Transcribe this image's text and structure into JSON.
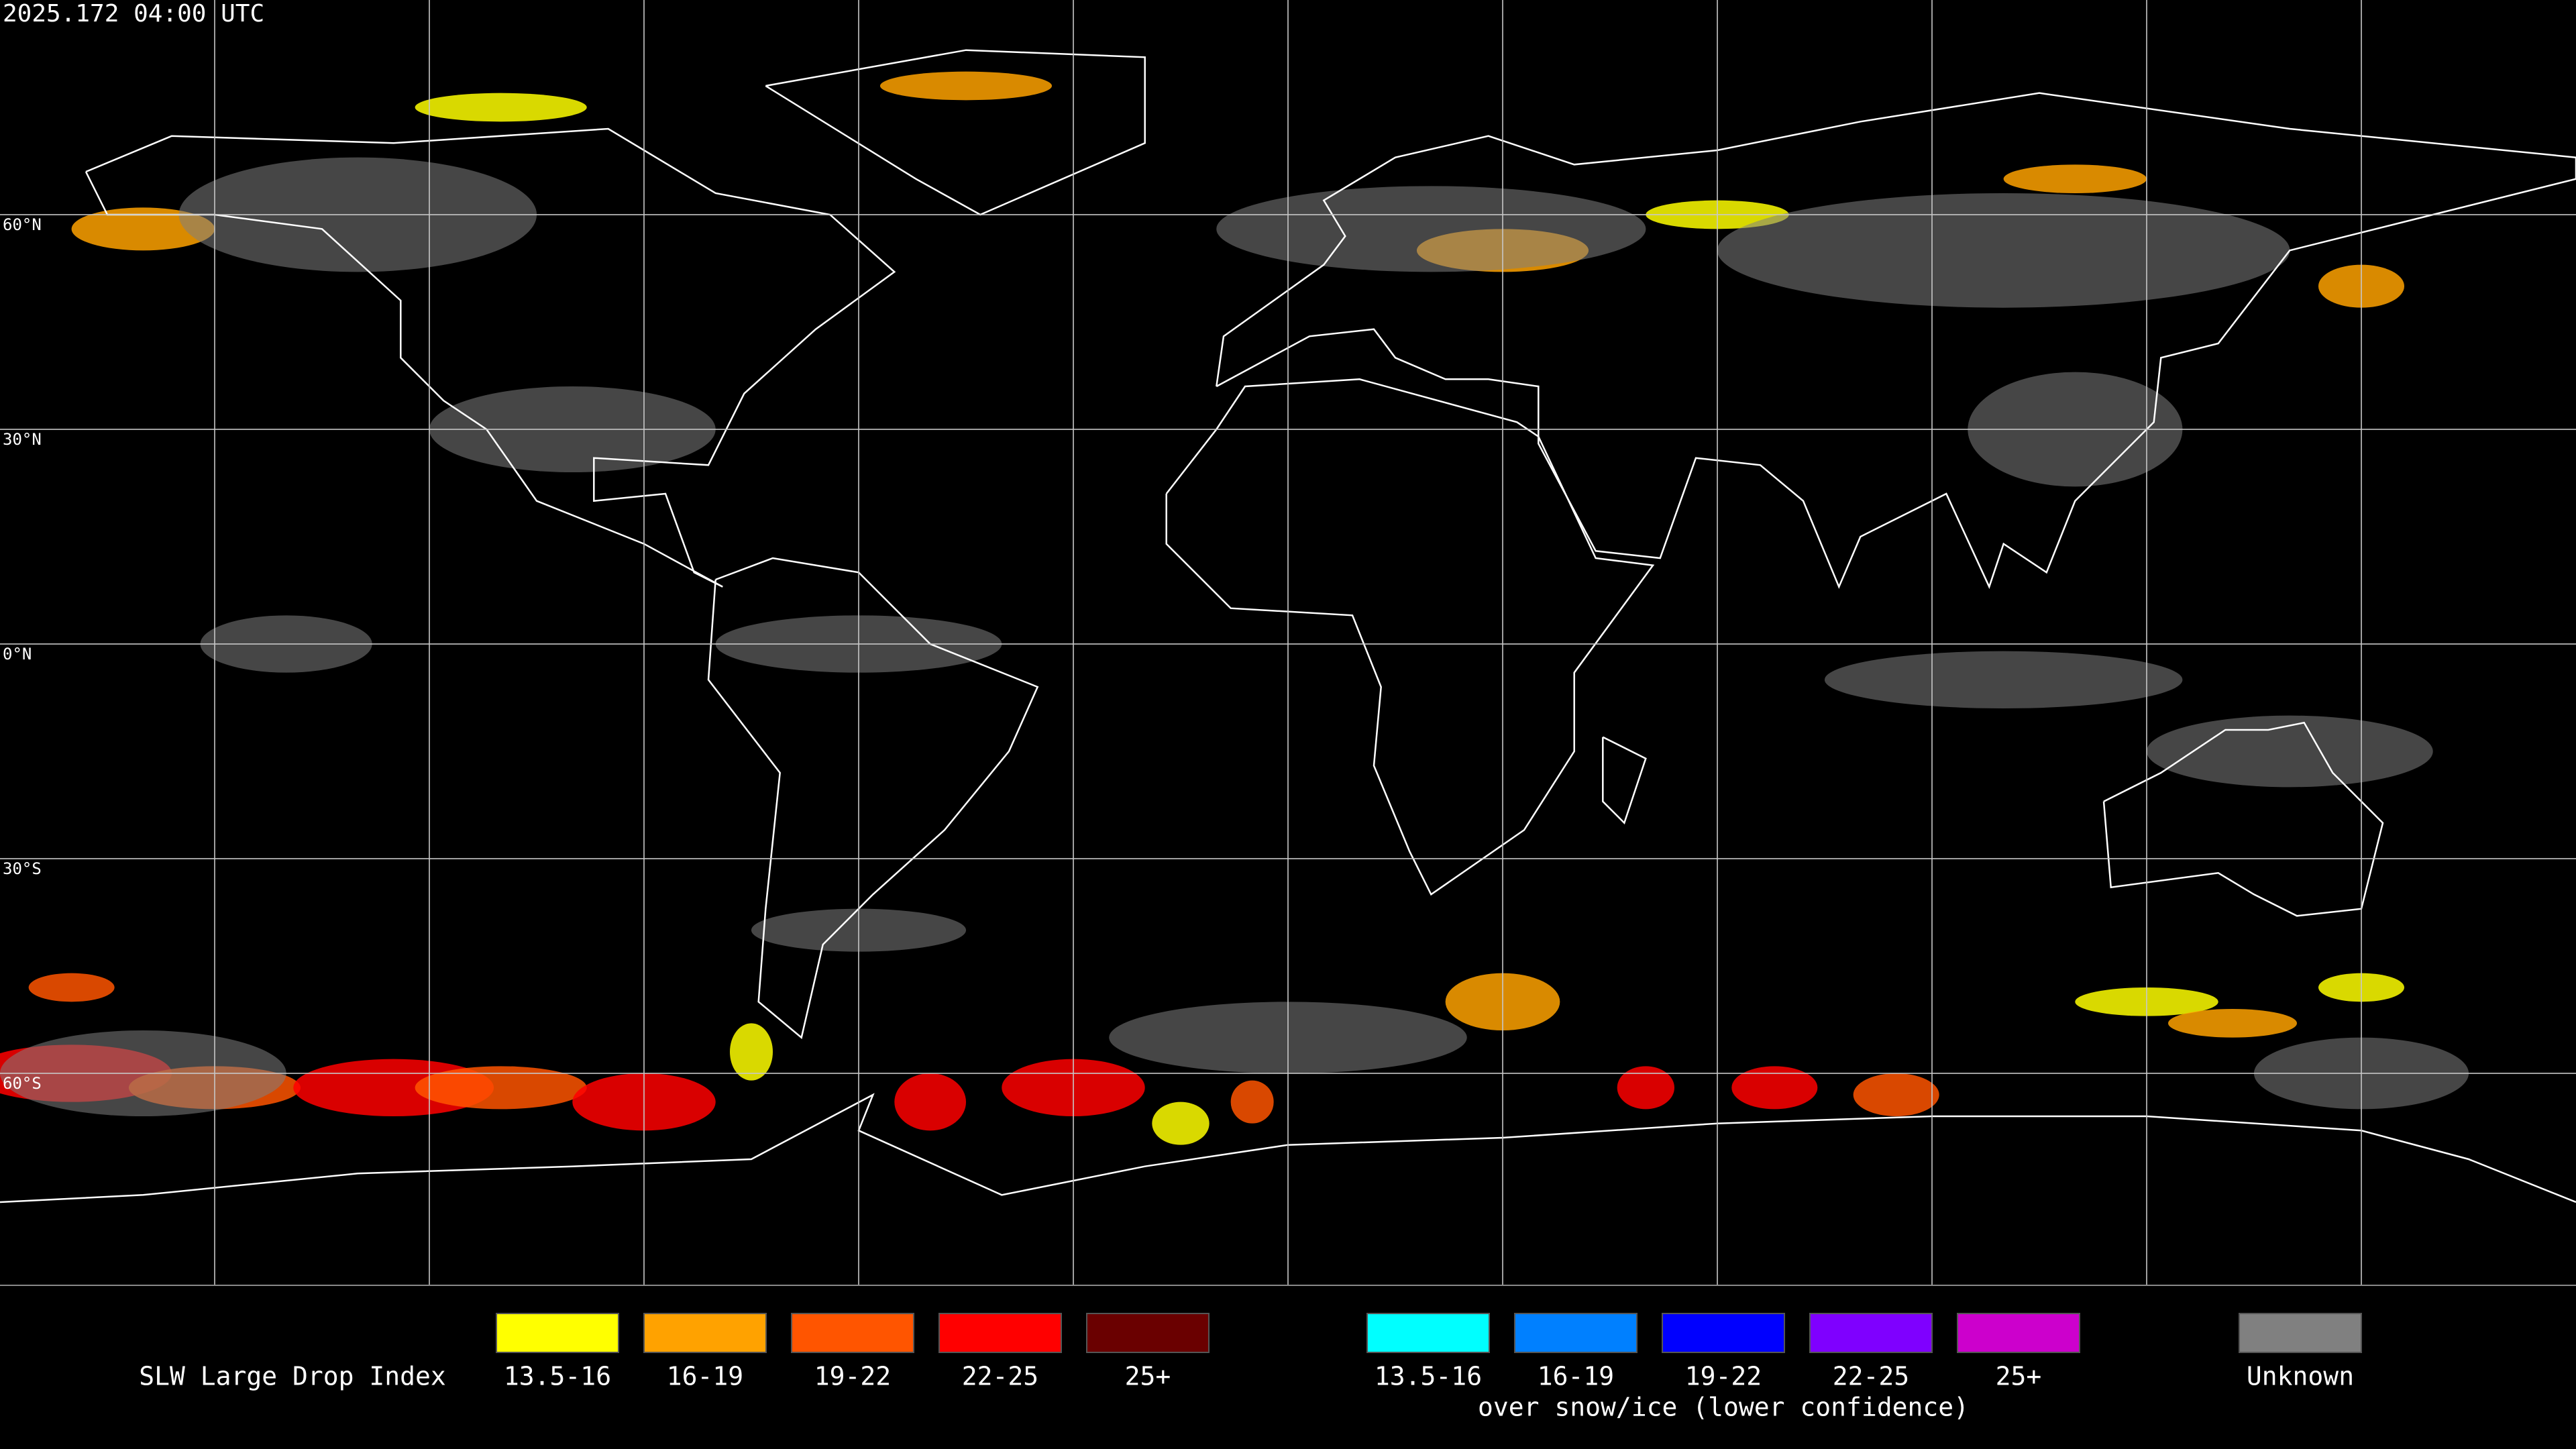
{
  "header": {
    "title": "2025.172 04:00 UTC"
  },
  "map": {
    "lat_labels": [
      "60°N",
      "30°N",
      "0°N",
      "30°S",
      "60°S"
    ]
  },
  "legend": {
    "title": "SLW Large Drop Index",
    "items": [
      {
        "label": "13.5-16",
        "color": "#ffff00"
      },
      {
        "label": "16-19",
        "color": "#ffa200"
      },
      {
        "label": "19-22",
        "color": "#ff5500"
      },
      {
        "label": "22-25",
        "color": "#ff0000"
      },
      {
        "label": "25+",
        "color": "#6a0000"
      }
    ],
    "snow_items": [
      {
        "label": "13.5-16",
        "color": "#00ffff"
      },
      {
        "label": "16-19",
        "color": "#0080ff"
      },
      {
        "label": "19-22",
        "color": "#0000ff"
      },
      {
        "label": "22-25",
        "color": "#7f00ff"
      },
      {
        "label": "25+",
        "color": "#cc00cc"
      }
    ],
    "snow_note": "over snow/ice (lower confidence)",
    "unknown": {
      "label": "Unknown",
      "color": "#808080"
    }
  }
}
